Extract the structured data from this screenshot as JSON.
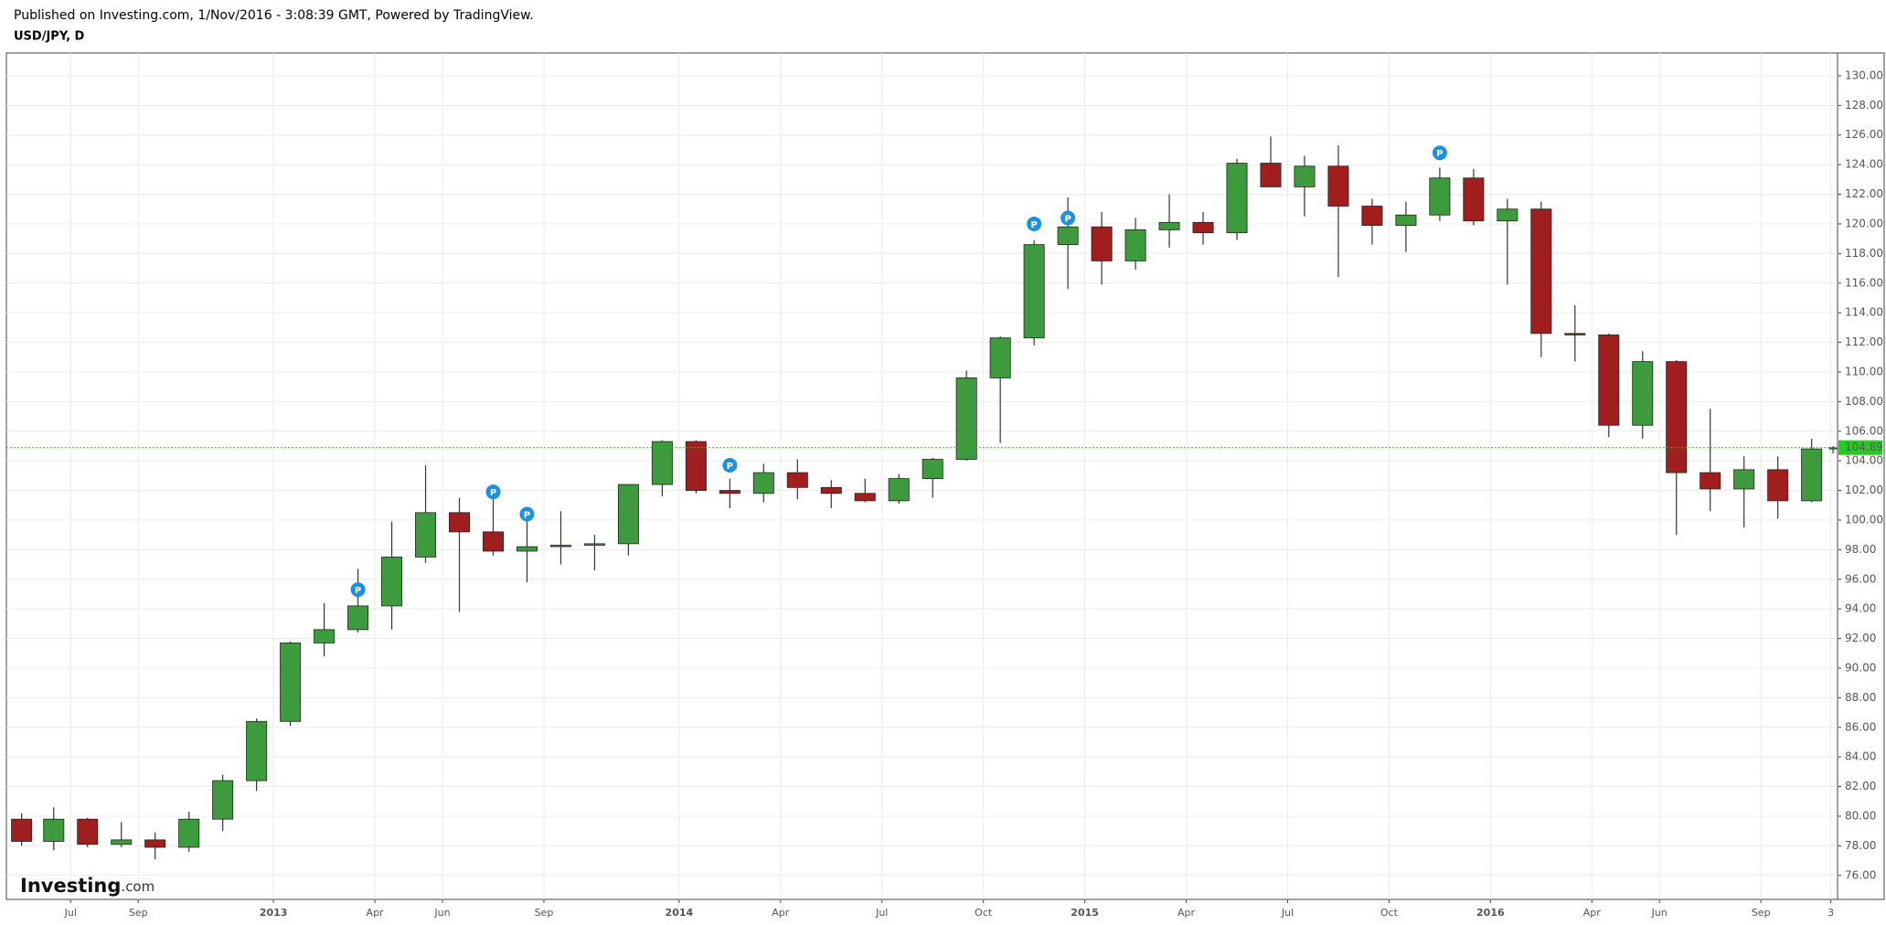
{
  "chart_data": {
    "type": "candlestick",
    "subtitle": "Published on Investing.com, 1/Nov/2016 - 3:08:39 GMT, Powered by TradingView.",
    "title": "USD/JPY, D",
    "x": [
      "2012-05",
      "2012-06",
      "2012-07",
      "2012-08",
      "2012-09",
      "2012-10",
      "2012-11",
      "2012-12",
      "2013-01",
      "2013-02",
      "2013-03",
      "2013-04",
      "2013-05",
      "2013-06",
      "2013-07",
      "2013-08",
      "2013-09",
      "2013-10",
      "2013-11",
      "2013-12",
      "2014-01",
      "2014-02",
      "2014-03",
      "2014-04",
      "2014-05",
      "2014-06",
      "2014-07",
      "2014-08",
      "2014-09",
      "2014-10",
      "2014-11",
      "2014-12",
      "2015-01",
      "2015-02",
      "2015-03",
      "2015-04",
      "2015-05",
      "2015-06",
      "2015-07",
      "2015-08",
      "2015-09",
      "2015-10",
      "2015-11",
      "2015-12",
      "2016-01",
      "2016-02",
      "2016-03",
      "2016-04",
      "2016-05",
      "2016-06",
      "2016-07",
      "2016-08",
      "2016-09",
      "2016-10",
      "2016-11"
    ],
    "open": [
      79.8,
      78.3,
      79.8,
      78.1,
      78.4,
      77.9,
      79.8,
      82.4,
      86.4,
      91.7,
      92.6,
      94.2,
      97.5,
      100.5,
      99.2,
      97.9,
      98.2,
      98.3,
      98.4,
      102.4,
      105.3,
      102.0,
      101.8,
      103.2,
      102.2,
      101.8,
      101.3,
      102.8,
      104.1,
      109.6,
      112.3,
      118.6,
      119.8,
      117.5,
      119.6,
      120.1,
      119.4,
      124.1,
      122.5,
      123.9,
      121.2,
      119.9,
      120.6,
      123.1,
      120.2,
      121.0,
      112.6,
      112.5,
      106.4,
      110.7,
      103.2,
      102.1,
      103.4,
      101.3,
      104.8
    ],
    "high": [
      80.2,
      80.6,
      79.9,
      79.6,
      78.9,
      80.3,
      82.8,
      86.6,
      91.8,
      94.4,
      96.7,
      99.9,
      103.7,
      101.5,
      101.5,
      99.9,
      100.6,
      99.0,
      102.4,
      105.4,
      105.4,
      102.8,
      103.8,
      104.1,
      102.7,
      102.8,
      103.1,
      104.2,
      110.1,
      112.4,
      118.9,
      121.8,
      120.8,
      120.4,
      122.0,
      120.8,
      124.4,
      125.9,
      124.6,
      125.3,
      121.7,
      121.5,
      123.8,
      123.7,
      121.7,
      121.5,
      114.5,
      112.6,
      111.4,
      110.8,
      107.5,
      104.3,
      104.3,
      105.5,
      105.0
    ],
    "low": [
      78.0,
      77.7,
      77.9,
      77.9,
      77.1,
      77.6,
      79.0,
      81.7,
      86.1,
      90.8,
      92.4,
      92.6,
      97.1,
      93.8,
      97.6,
      95.8,
      97.0,
      96.6,
      97.6,
      101.6,
      101.8,
      100.8,
      101.2,
      101.4,
      100.8,
      101.2,
      101.1,
      101.5,
      104.0,
      105.2,
      111.8,
      115.6,
      115.9,
      116.9,
      118.4,
      118.6,
      118.9,
      122.5,
      120.5,
      116.4,
      118.6,
      118.1,
      120.2,
      119.9,
      115.9,
      111.0,
      110.7,
      105.6,
      105.5,
      99.0,
      100.6,
      99.5,
      100.1,
      101.2,
      104.5
    ],
    "close": [
      78.3,
      79.8,
      78.1,
      78.4,
      77.9,
      79.8,
      82.4,
      86.4,
      91.7,
      92.6,
      94.2,
      97.5,
      100.5,
      99.2,
      97.9,
      98.2,
      98.3,
      98.4,
      102.4,
      105.3,
      102.0,
      101.8,
      103.2,
      102.2,
      101.8,
      101.3,
      102.8,
      104.1,
      109.6,
      112.3,
      118.6,
      119.8,
      117.5,
      119.6,
      120.1,
      119.4,
      124.1,
      122.5,
      123.9,
      121.2,
      119.9,
      120.6,
      123.1,
      120.2,
      121.0,
      112.6,
      112.5,
      106.4,
      110.7,
      103.2,
      102.1,
      103.4,
      101.3,
      104.8,
      104.89
    ],
    "up_color": "#3d9a3d",
    "down_color": "#a01e1e",
    "last_price": 104.89,
    "last_price_color": "#22cc22",
    "markers": {
      "label": "P",
      "color": "#1e90e0",
      "x": [
        "2013-03",
        "2013-07",
        "2013-08",
        "2014-02",
        "2014-11",
        "2014-12",
        "2015-11"
      ],
      "y": [
        95.3,
        101.9,
        100.4,
        103.7,
        120.0,
        120.4,
        124.8
      ]
    },
    "watermark": [
      "Investing",
      ".com"
    ],
    "xlim": [
      "2012-05-04",
      "2016-11-09"
    ],
    "xticks": [
      {
        "value": "2012-07-01",
        "label": "Jul"
      },
      {
        "value": "2012-09-01",
        "label": "Sep"
      },
      {
        "value": "2013-01-01",
        "label": "2013"
      },
      {
        "value": "2013-04-01",
        "label": "Apr"
      },
      {
        "value": "2013-06-01",
        "label": "Jun"
      },
      {
        "value": "2013-09-01",
        "label": "Sep"
      },
      {
        "value": "2014-01-01",
        "label": "2014"
      },
      {
        "value": "2014-04-01",
        "label": "Apr"
      },
      {
        "value": "2014-07-01",
        "label": "Jul"
      },
      {
        "value": "2014-10-01",
        "label": "Oct"
      },
      {
        "value": "2015-01-01",
        "label": "2015"
      },
      {
        "value": "2015-04-01",
        "label": "Apr"
      },
      {
        "value": "2015-07-01",
        "label": "Jul"
      },
      {
        "value": "2015-10-01",
        "label": "Oct"
      },
      {
        "value": "2016-01-01",
        "label": "2016"
      },
      {
        "value": "2016-04-01",
        "label": "Apr"
      },
      {
        "value": "2016-06-01",
        "label": "Jun"
      },
      {
        "value": "2016-09-01",
        "label": "Sep"
      },
      {
        "value": "2016-11-03",
        "label": "3"
      }
    ],
    "ylim": [
      74.38,
      131.54
    ],
    "yticks": [
      {
        "value": 76,
        "label": "76.00"
      },
      {
        "value": 78,
        "label": "78.00"
      },
      {
        "value": 80,
        "label": "80.00"
      },
      {
        "value": 82,
        "label": "82.00"
      },
      {
        "value": 84,
        "label": "84.00"
      },
      {
        "value": 86,
        "label": "86.00"
      },
      {
        "value": 88,
        "label": "88.00"
      },
      {
        "value": 90,
        "label": "90.00"
      },
      {
        "value": 92,
        "label": "92.00"
      },
      {
        "value": 94,
        "label": "94.00"
      },
      {
        "value": 96,
        "label": "96.00"
      },
      {
        "value": 98,
        "label": "98.00"
      },
      {
        "value": 100,
        "label": "100.00"
      },
      {
        "value": 102,
        "label": "102.00"
      },
      {
        "value": 104,
        "label": "104.00"
      },
      {
        "value": 106,
        "label": "106.00"
      },
      {
        "value": 108,
        "label": "108.00"
      },
      {
        "value": 110,
        "label": "110.00"
      },
      {
        "value": 112,
        "label": "112.00"
      },
      {
        "value": 114,
        "label": "114.00"
      },
      {
        "value": 116,
        "label": "116.00"
      },
      {
        "value": 118,
        "label": "118.00"
      },
      {
        "value": 120,
        "label": "120.00"
      },
      {
        "value": 122,
        "label": "122.00"
      },
      {
        "value": 124,
        "label": "124.00"
      },
      {
        "value": 126,
        "label": "126.00"
      },
      {
        "value": 128,
        "label": "128.00"
      },
      {
        "value": 130,
        "label": "130.00"
      }
    ],
    "grid": true
  }
}
